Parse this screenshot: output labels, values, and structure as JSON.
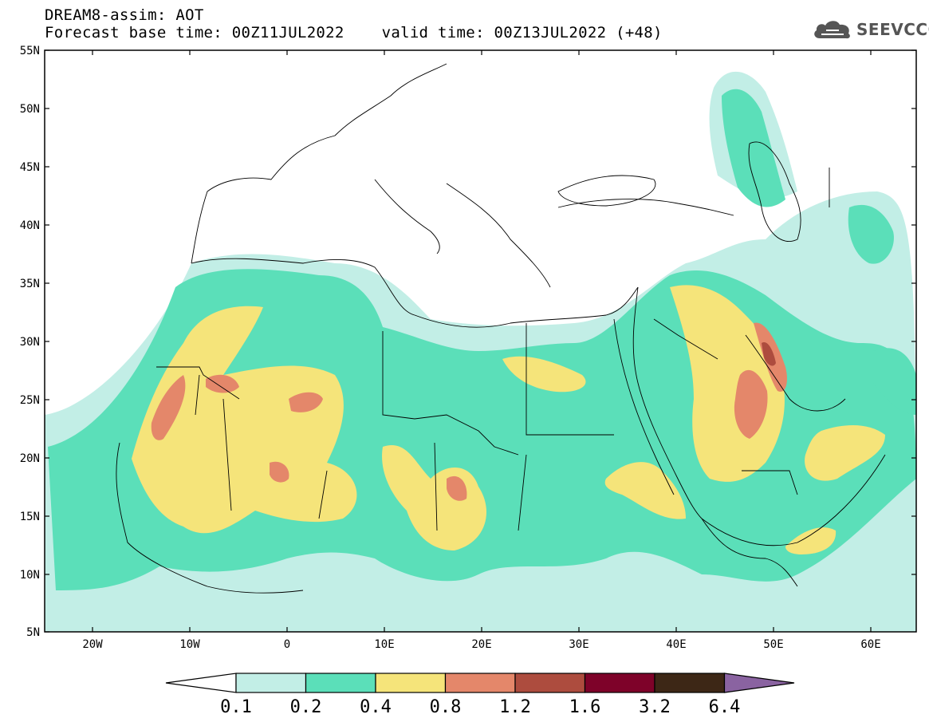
{
  "header": {
    "title_line1": "DREAM8-assim: AOT",
    "title_line2": "Forecast base time: 00Z11JUL2022    valid time: 00Z13JUL2022 (+48)"
  },
  "brand": {
    "name": "SEEVCCC",
    "logo_icon": "cloud-icon",
    "color": "#555555"
  },
  "map": {
    "latitude_labels": [
      "55N",
      "50N",
      "45N",
      "40N",
      "35N",
      "30N",
      "25N",
      "20N",
      "15N",
      "10N",
      "5N"
    ],
    "longitude_labels": [
      "20W",
      "10W",
      "0",
      "10E",
      "20E",
      "30E",
      "40E",
      "50E",
      "60E"
    ]
  },
  "colorbar": {
    "labels": [
      "0.1",
      "0.2",
      "0.4",
      "0.8",
      "1.2",
      "1.6",
      "3.2",
      "6.4"
    ],
    "colors": [
      "#ffffff",
      "#c2eee6",
      "#5bdfb9",
      "#f5e47a",
      "#e4876a",
      "#ad4c3e",
      "#7e0229",
      "#3d2716",
      "#8a63a1"
    ],
    "colors_note_omitted": true
  }
}
